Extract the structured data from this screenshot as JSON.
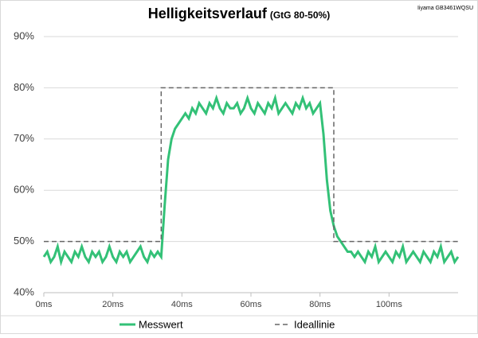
{
  "chart_data": {
    "type": "line",
    "title": "Helligkeitsverlauf",
    "subtitle": "(GtG 80-50%)",
    "annotation": "Iiyama GB3461WQSU",
    "xlim": [
      0,
      120
    ],
    "xticks": [
      {
        "value": 0,
        "label": "0ms"
      },
      {
        "value": 20,
        "label": "20ms"
      },
      {
        "value": 40,
        "label": "40ms"
      },
      {
        "value": 60,
        "label": "60ms"
      },
      {
        "value": 80,
        "label": "80ms"
      },
      {
        "value": 100,
        "label": "100ms"
      }
    ],
    "ylim": [
      40,
      90
    ],
    "yticks": [
      {
        "value": 40,
        "label": "40%"
      },
      {
        "value": 50,
        "label": "50%"
      },
      {
        "value": 60,
        "label": "60%"
      },
      {
        "value": 70,
        "label": "70%"
      },
      {
        "value": 80,
        "label": "80%"
      },
      {
        "value": 90,
        "label": "90%"
      }
    ],
    "grid": true,
    "legend": "bottom",
    "series": [
      {
        "name": "Messwert",
        "color": "#33c177",
        "dash": false,
        "x": [
          0,
          1,
          2,
          3,
          4,
          5,
          6,
          7,
          8,
          9,
          10,
          11,
          12,
          13,
          14,
          15,
          16,
          17,
          18,
          19,
          20,
          21,
          22,
          23,
          24,
          25,
          26,
          27,
          28,
          29,
          30,
          31,
          32,
          33,
          34,
          35,
          36,
          37,
          38,
          39,
          40,
          41,
          42,
          43,
          44,
          45,
          46,
          47,
          48,
          49,
          50,
          51,
          52,
          53,
          54,
          55,
          56,
          57,
          58,
          59,
          60,
          61,
          62,
          63,
          64,
          65,
          66,
          67,
          68,
          69,
          70,
          71,
          72,
          73,
          74,
          75,
          76,
          77,
          78,
          79,
          80,
          81,
          82,
          83,
          84,
          85,
          86,
          87,
          88,
          89,
          90,
          91,
          92,
          93,
          94,
          95,
          96,
          97,
          98,
          99,
          100,
          101,
          102,
          103,
          104,
          105,
          106,
          107,
          108,
          109,
          110,
          111,
          112,
          113,
          114,
          115,
          116,
          117,
          118,
          119,
          120
        ],
        "values": [
          47,
          48,
          46,
          47,
          49,
          46,
          48,
          47,
          46,
          48,
          47,
          49,
          47,
          46,
          48,
          47,
          48,
          46,
          47,
          49,
          47,
          46,
          48,
          47,
          48,
          46,
          47,
          48,
          49,
          47,
          46,
          48,
          47,
          48,
          47,
          57,
          66,
          70,
          72,
          73,
          74,
          75,
          74,
          76,
          75,
          77,
          76,
          75,
          77,
          76,
          78,
          76,
          75,
          77,
          76,
          76,
          77,
          75,
          76,
          78,
          76,
          75,
          77,
          76,
          75,
          77,
          76,
          78,
          75,
          76,
          77,
          76,
          75,
          77,
          76,
          78,
          76,
          77,
          75,
          76,
          77,
          71,
          62,
          56,
          53,
          51,
          50,
          49,
          48,
          48,
          47,
          48,
          47,
          46,
          48,
          47,
          49,
          46,
          47,
          48,
          47,
          46,
          48,
          47,
          49,
          46,
          47,
          48,
          47,
          46,
          48,
          47,
          46,
          48,
          47,
          49,
          46,
          47,
          48,
          46,
          47
        ]
      },
      {
        "name": "Ideallinie",
        "color": "#666666",
        "dash": true,
        "x": [
          0,
          34,
          34,
          84,
          84,
          120
        ],
        "values": [
          50,
          50,
          80,
          80,
          50,
          50
        ]
      }
    ]
  }
}
